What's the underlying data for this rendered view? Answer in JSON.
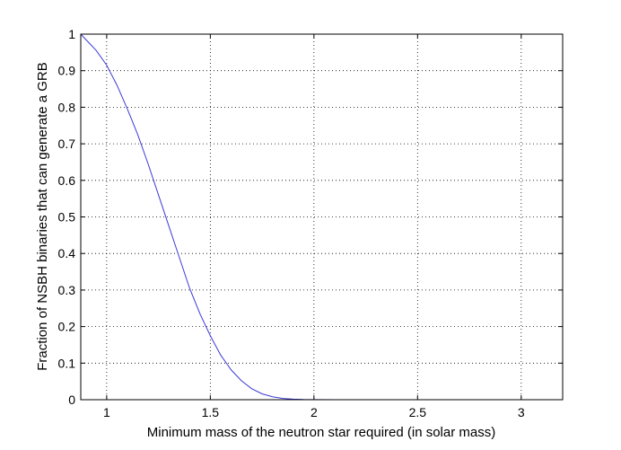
{
  "chart_data": {
    "type": "line",
    "title": "",
    "xlabel": "Minimum mass of the neutron star required (in solar mass)",
    "ylabel": "Fraction of NSBH binaries that can generate a GRB",
    "xlim": [
      0.875,
      3.2
    ],
    "ylim": [
      0,
      1
    ],
    "grid": true,
    "grid_style": "dotted",
    "x_ticks": [
      1,
      1.5,
      2,
      2.5,
      3
    ],
    "y_ticks": [
      0,
      0.1,
      0.2,
      0.3,
      0.4,
      0.5,
      0.6,
      0.7,
      0.8,
      0.9,
      1
    ],
    "series": [
      {
        "color": "#3a3ad8",
        "x": [
          0.875,
          0.9,
          0.95,
          1.0,
          1.05,
          1.1,
          1.15,
          1.2,
          1.25,
          1.3,
          1.35,
          1.4,
          1.45,
          1.5,
          1.55,
          1.6,
          1.65,
          1.7,
          1.75,
          1.8,
          1.85,
          1.9,
          1.95,
          2.0,
          2.1,
          2.2,
          2.4,
          2.6,
          2.8,
          3.0,
          3.2
        ],
        "y": [
          1.0,
          0.985,
          0.955,
          0.915,
          0.86,
          0.795,
          0.725,
          0.645,
          0.56,
          0.475,
          0.39,
          0.305,
          0.235,
          0.175,
          0.122,
          0.082,
          0.052,
          0.03,
          0.016,
          0.008,
          0.0035,
          0.0015,
          0.0005,
          0.0002,
          0.0,
          0.0,
          0.0,
          0.0,
          0.0,
          0.0,
          0.0
        ]
      }
    ]
  }
}
